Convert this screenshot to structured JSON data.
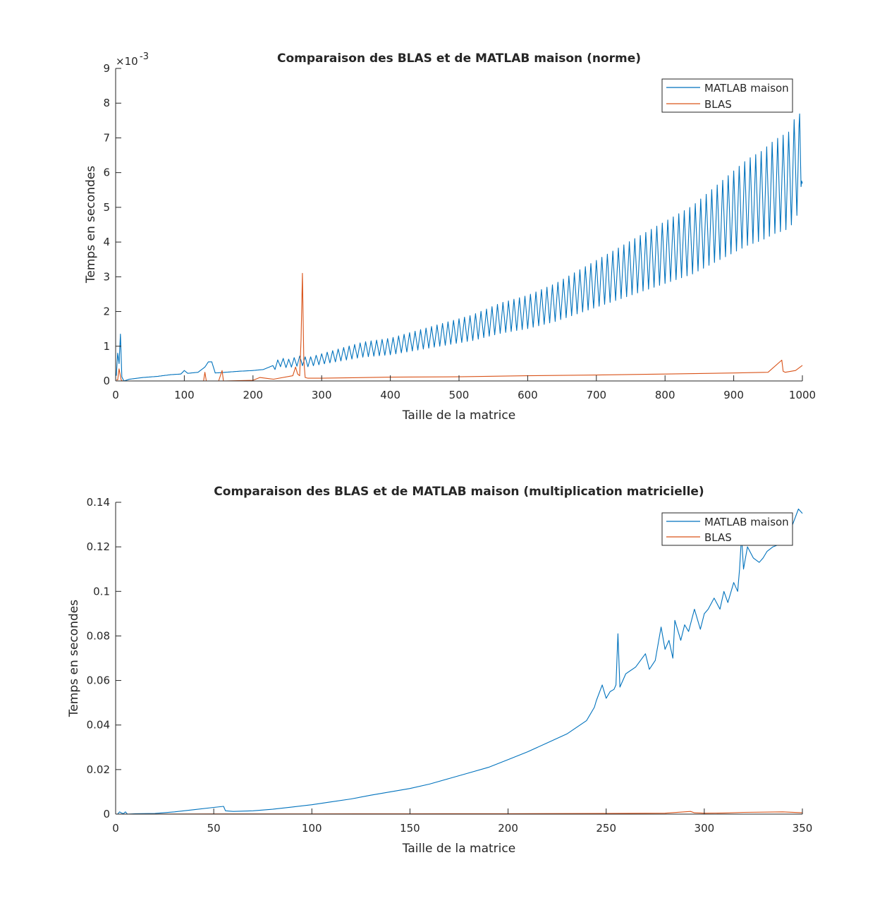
{
  "colors": {
    "matlab": "#0072BD",
    "blas": "#D95319",
    "axis": "#262626",
    "background": "#ffffff"
  },
  "chart_data": [
    {
      "type": "line",
      "title": "Comparaison des BLAS et de MATLAB maison (norme)",
      "xlabel": "Taille de la matrice",
      "ylabel": "Temps en secondes",
      "exponent_label": "×10",
      "exponent_power": "-3",
      "xlim": [
        0,
        1000
      ],
      "ylim": [
        0,
        9
      ],
      "y_display_scale": 0.001,
      "xticks": [
        "0",
        "100",
        "200",
        "300",
        "400",
        "500",
        "600",
        "700",
        "800",
        "900",
        "1000"
      ],
      "yticks": [
        "0",
        "1",
        "2",
        "3",
        "4",
        "5",
        "6",
        "7",
        "8",
        "9"
      ],
      "grid": false,
      "legend_position": "top-right",
      "series": [
        {
          "name": "MATLAB maison",
          "color": "#0072BD",
          "x": [
            1,
            3,
            5,
            7,
            9,
            12,
            20,
            40,
            60,
            80,
            95,
            100,
            105,
            120,
            130,
            135,
            140,
            145,
            160,
            180,
            200,
            215,
            230,
            240,
            250,
            260,
            270,
            280,
            290,
            300,
            320,
            340,
            360,
            380,
            400,
            420,
            440,
            460,
            480,
            500,
            520,
            540,
            560,
            580,
            600,
            620,
            640,
            660,
            680,
            700,
            720,
            740,
            760,
            780,
            800,
            820,
            840,
            860,
            880,
            900,
            920,
            940,
            960,
            980,
            990,
            995,
            998,
            1000
          ],
          "y": [
            0.00015,
            0.0008,
            0.0005,
            0.00135,
            0.00012,
            0.0,
            5e-05,
            0.0001,
            0.00013,
            0.00018,
            0.0002,
            0.0003,
            0.00022,
            0.00025,
            0.0004,
            0.00055,
            0.00055,
            0.00023,
            0.00025,
            0.00028,
            0.0003,
            0.00033,
            0.00045,
            0.0006,
            0.00055,
            0.0006,
            0.00065,
            0.0006,
            0.00065,
            0.0007,
            0.0008,
            0.0009,
            0.001,
            0.00105,
            0.0011,
            0.0012,
            0.0013,
            0.0014,
            0.0015,
            0.0016,
            0.0017,
            0.00185,
            0.002,
            0.0021,
            0.0022,
            0.00235,
            0.0025,
            0.0027,
            0.0029,
            0.0031,
            0.0033,
            0.0035,
            0.0037,
            0.0039,
            0.0041,
            0.0043,
            0.0045,
            0.0048,
            0.0051,
            0.0054,
            0.0057,
            0.0059,
            0.0062,
            0.0064,
            0.0068,
            0.0072,
            0.0062,
            0.0083
          ],
          "spread_start": 230,
          "spread_amplitude_fraction": 0.35
        },
        {
          "name": "BLAS",
          "color": "#D95319",
          "x": [
            1,
            3,
            5,
            8,
            10,
            50,
            100,
            128,
            130,
            132,
            150,
            155,
            157,
            200,
            210,
            230,
            258,
            262,
            265,
            268,
            270,
            272,
            274,
            276,
            280,
            300,
            400,
            500,
            600,
            700,
            800,
            900,
            950,
            970,
            972,
            975,
            990,
            1000
          ],
          "y": [
            3e-05,
            3e-05,
            0.00035,
            3e-05,
            0.0,
            0.0,
            0.0,
            0.0,
            0.00025,
            0.0,
            0.0,
            0.0003,
            0.0,
            2e-05,
            0.0001,
            5e-05,
            0.00015,
            0.0004,
            0.0002,
            0.00015,
            0.0012,
            0.0031,
            0.0006,
            0.0001,
            8e-05,
            8e-05,
            0.00011,
            0.00012,
            0.00015,
            0.00017,
            0.0002,
            0.00023,
            0.00025,
            0.0006,
            0.00028,
            0.00025,
            0.0003,
            0.00045
          ]
        }
      ]
    },
    {
      "type": "line",
      "title": "Comparaison des BLAS et de MATLAB maison (multiplication matricielle)",
      "xlabel": "Taille de la matrice",
      "ylabel": "Temps en secondes",
      "xlim": [
        0,
        350
      ],
      "ylim": [
        0,
        0.14
      ],
      "xticks": [
        "0",
        "50",
        "100",
        "150",
        "200",
        "250",
        "300",
        "350"
      ],
      "yticks": [
        "0",
        "0.02",
        "0.04",
        "0.06",
        "0.08",
        "0.1",
        "0.12",
        "0.14"
      ],
      "grid": false,
      "legend_position": "top-right",
      "series": [
        {
          "name": "MATLAB maison",
          "color": "#0072BD",
          "x": [
            1,
            2,
            3,
            4,
            5,
            6,
            10,
            20,
            30,
            40,
            50,
            55,
            56,
            60,
            70,
            80,
            90,
            100,
            110,
            120,
            130,
            140,
            150,
            160,
            170,
            180,
            190,
            200,
            210,
            220,
            230,
            240,
            244,
            245,
            248,
            250,
            252,
            254,
            255,
            256,
            257,
            260,
            265,
            270,
            272,
            275,
            278,
            280,
            282,
            284,
            285,
            288,
            290,
            292,
            295,
            298,
            300,
            302,
            305,
            308,
            310,
            312,
            315,
            317,
            318,
            319,
            320,
            322,
            325,
            328,
            330,
            332,
            335,
            338,
            340,
            342,
            345,
            348,
            350
          ],
          "y": [
            0.0,
            0.001,
            0.0005,
            0.0002,
            0.001,
            0.0,
            0.0002,
            0.0003,
            0.001,
            0.002,
            0.003,
            0.0035,
            0.0015,
            0.0012,
            0.0015,
            0.0022,
            0.0032,
            0.0042,
            0.0055,
            0.0068,
            0.0085,
            0.01,
            0.0115,
            0.0135,
            0.016,
            0.0185,
            0.021,
            0.0245,
            0.028,
            0.032,
            0.036,
            0.042,
            0.048,
            0.051,
            0.058,
            0.052,
            0.055,
            0.056,
            0.058,
            0.081,
            0.057,
            0.063,
            0.066,
            0.072,
            0.065,
            0.069,
            0.084,
            0.074,
            0.078,
            0.07,
            0.087,
            0.078,
            0.085,
            0.082,
            0.092,
            0.083,
            0.09,
            0.092,
            0.097,
            0.092,
            0.1,
            0.095,
            0.104,
            0.1,
            0.11,
            0.125,
            0.11,
            0.12,
            0.115,
            0.113,
            0.115,
            0.118,
            0.12,
            0.121,
            0.127,
            0.128,
            0.13,
            0.137,
            0.135
          ]
        },
        {
          "name": "BLAS",
          "color": "#D95319",
          "x": [
            0,
            50,
            100,
            150,
            200,
            250,
            280,
            293,
            295,
            300,
            310,
            320,
            340,
            350
          ],
          "y": [
            0.0,
            0.0001,
            0.0001,
            0.00015,
            0.0002,
            0.0003,
            0.0004,
            0.0012,
            0.0006,
            0.0004,
            0.0005,
            0.0008,
            0.001,
            0.0006
          ]
        }
      ]
    }
  ]
}
